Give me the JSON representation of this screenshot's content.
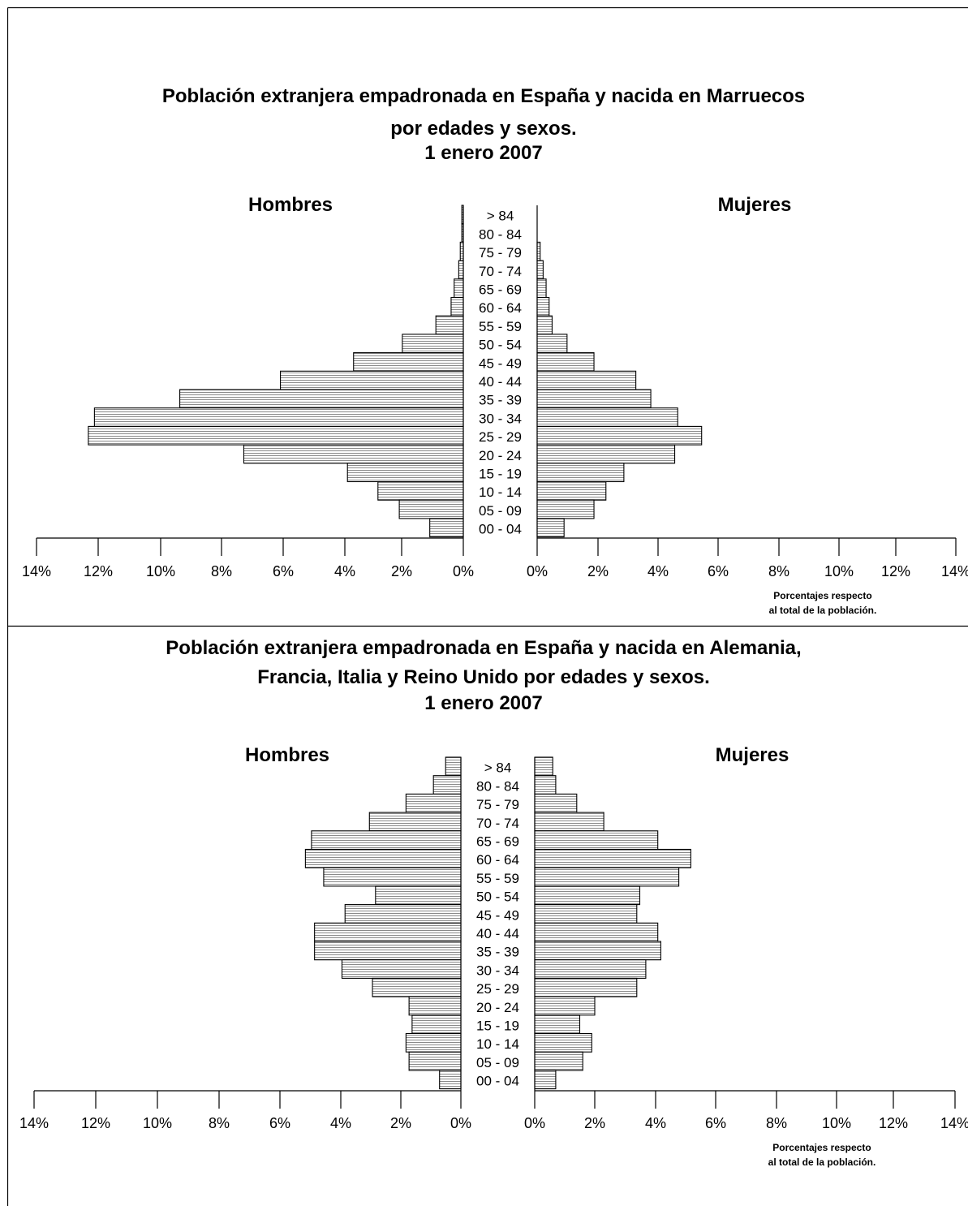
{
  "charts": [
    {
      "title_lines": [
        "Población extranjera empadronada en España y nacida en Marruecos",
        "por edades y sexos.",
        "1 enero 2007"
      ],
      "left_label": "Hombres",
      "right_label": "Mujeres",
      "note_lines": [
        "Porcentajes respecto",
        "al total de la población."
      ]
    },
    {
      "title_lines": [
        "Población extranjera empadronada en España y nacida en Alemania,",
        "Francia, Italia y Reino Unido por edades y sexos.",
        "1 enero 2007"
      ],
      "left_label": "Hombres",
      "right_label": "Mujeres",
      "note_lines": [
        "Porcentajes respecto",
        "al total de la población."
      ]
    }
  ],
  "chart_data": [
    {
      "type": "bar",
      "title": "Población extranjera empadronada en España y nacida en Marruecos por edades y sexos. 1 enero 2007",
      "categories": [
        "> 84",
        "80 - 84",
        "75 - 79",
        "70 - 74",
        "65 - 69",
        "60 - 64",
        "55 - 59",
        "50 - 54",
        "45 - 49",
        "40 - 44",
        "35 - 39",
        "30 - 34",
        "25 - 29",
        "20 - 24",
        "15 - 19",
        "10 - 14",
        "05 - 09",
        "00 - 04"
      ],
      "series": [
        {
          "name": "Hombres",
          "values": [
            0.05,
            0.05,
            0.1,
            0.15,
            0.3,
            0.4,
            0.9,
            2.0,
            3.6,
            6.0,
            9.3,
            12.1,
            12.3,
            7.2,
            3.8,
            2.8,
            2.1,
            1.1
          ]
        },
        {
          "name": "Mujeres",
          "values": [
            0.0,
            0.0,
            0.1,
            0.2,
            0.3,
            0.4,
            0.5,
            1.0,
            1.9,
            3.3,
            3.8,
            4.7,
            5.5,
            4.6,
            2.9,
            2.3,
            1.9,
            0.9
          ]
        }
      ],
      "x_ticks": [
        "14%",
        "12%",
        "10%",
        "8%",
        "6%",
        "4%",
        "2%",
        "0%",
        "0%",
        "2%",
        "4%",
        "6%",
        "8%",
        "10%",
        "12%",
        "14%"
      ],
      "xlim": [
        0,
        14
      ],
      "grid": false,
      "orientation": "horizontal-pyramid"
    },
    {
      "type": "bar",
      "title": "Población extranjera empadronada en España y nacida en Alemania, Francia, Italia y Reino Unido por edades y sexos. 1 enero 2007",
      "categories": [
        "> 84",
        "80 - 84",
        "75 - 79",
        "70 - 74",
        "65 - 69",
        "60 - 64",
        "55 - 59",
        "50 - 54",
        "45 - 49",
        "40 - 44",
        "35 - 39",
        "30 - 34",
        "25 - 29",
        "20 - 24",
        "15 - 19",
        "10 - 14",
        "05 - 09",
        "00 - 04"
      ],
      "series": [
        {
          "name": "Hombres",
          "values": [
            0.5,
            0.9,
            1.8,
            3.0,
            4.9,
            5.1,
            4.5,
            2.8,
            3.8,
            4.8,
            4.8,
            3.9,
            2.9,
            1.7,
            1.6,
            1.8,
            1.7,
            0.7
          ]
        },
        {
          "name": "Mujeres",
          "values": [
            0.6,
            0.7,
            1.4,
            2.3,
            4.1,
            5.2,
            4.8,
            3.5,
            3.4,
            4.1,
            4.2,
            3.7,
            3.4,
            2.0,
            1.5,
            1.9,
            1.6,
            0.7
          ]
        }
      ],
      "x_ticks": [
        "14%",
        "12%",
        "10%",
        "8%",
        "6%",
        "4%",
        "2%",
        "0%",
        "0%",
        "2%",
        "4%",
        "6%",
        "8%",
        "10%",
        "12%",
        "14%"
      ],
      "xlim": [
        0,
        14
      ],
      "grid": false,
      "orientation": "horizontal-pyramid"
    }
  ]
}
